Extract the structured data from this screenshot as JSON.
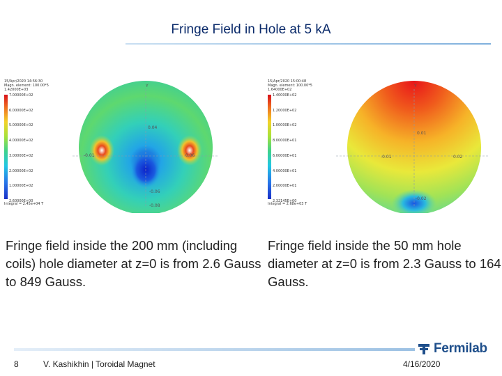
{
  "slide": {
    "title": "Fringe Field in Hole at 5 kA",
    "left_plot": {
      "header": [
        "15/Apr/2020 14:56:30",
        "Magn. element: 100.00*5",
        "1.42000E+03"
      ],
      "legend_values": [
        "7.00000E+02",
        "6.00000E+02",
        "5.00000E+02",
        "4.00000E+02",
        "3.00000E+02",
        "2.00000E+02",
        "1.00000E+02",
        "2.60000E+00"
      ],
      "footer": "Integral = 2.45e+04 T",
      "labels": [
        "Y",
        "0.04",
        "-0.01",
        "0.06",
        "-0.06",
        "-0.08"
      ]
    },
    "right_plot": {
      "header": [
        "15/Apr/2020 15:00:48",
        "Magn. element: 100.00*5",
        "1.64000E+02"
      ],
      "legend_values": [
        "1.40000E+02",
        "1.20000E+02",
        "1.00000E+02",
        "8.00000E+01",
        "6.00000E+01",
        "4.00000E+01",
        "2.00000E+01",
        "2.32145E+00"
      ],
      "footer": "Integral = 2.68e+03 T",
      "labels": [
        "Y",
        "0.01",
        "-0.01",
        "0.02",
        "-0.02"
      ]
    },
    "caption_left": "Fringe field inside the 200 mm (including coils) hole diameter at z=0 is from 2.6 Gauss to 849 Gauss.",
    "caption_right": "Fringe field inside the 50 mm hole diameter at z=0 is from 2.3 Gauss to 164 Gauss.",
    "footer": {
      "page_number": "8",
      "author": "V. Kashikhin | Toroidal Magnet",
      "date": "4/16/2020",
      "logo_text": "Fermilab"
    }
  },
  "colors": {
    "title": "#0a2a6a",
    "logo": "#1f4f8b"
  }
}
